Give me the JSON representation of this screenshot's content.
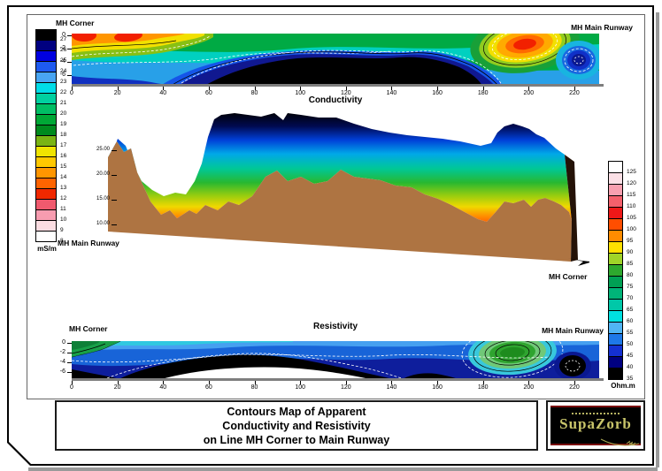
{
  "panels": {
    "conductivity": {
      "left_label": "MH Corner",
      "right_label": "MH Main Runway",
      "axis_title": "Conductivity",
      "x_ticks": [
        "0",
        "20",
        "40",
        "60",
        "80",
        "100",
        "120",
        "140",
        "160",
        "180",
        "200",
        "220"
      ],
      "y_ticks": [
        "0",
        "-2",
        "-4",
        "-6"
      ]
    },
    "terrain": {
      "left_label": "MH Main Runway",
      "right_label": "MH Corner",
      "elevation_ticks": [
        "25.00",
        "20.00",
        "15.00",
        "10.00"
      ]
    },
    "resistivity": {
      "left_label": "MH Corner",
      "right_label": "MH Main Runway",
      "axis_title": "Resistivity",
      "x_ticks": [
        "0",
        "20",
        "40",
        "60",
        "80",
        "100",
        "120",
        "140",
        "160",
        "180",
        "200",
        "220"
      ],
      "y_ticks": [
        "0",
        "-2",
        "-4",
        "-6"
      ]
    }
  },
  "left_colorbar": {
    "unit": "mS/m",
    "labels": [
      "27",
      "26",
      "25",
      "24",
      "23",
      "22",
      "21",
      "20",
      "19",
      "18",
      "17",
      "16",
      "15",
      "14",
      "13",
      "12",
      "11",
      "10",
      "9",
      "8"
    ],
    "colors": [
      "#000000",
      "#000080",
      "#0000E0",
      "#1E5AF0",
      "#49A5F2",
      "#00DCE8",
      "#00D0A0",
      "#00BE64",
      "#00A836",
      "#008A1E",
      "#7AB414",
      "#F0E400",
      "#FFC800",
      "#FF9600",
      "#FF6400",
      "#F02800",
      "#F05A6E",
      "#F79CB0",
      "#FBDDE2",
      "#FFFFFF"
    ]
  },
  "right_colorbar": {
    "unit": "Ohm.m",
    "labels": [
      "125",
      "120",
      "115",
      "110",
      "105",
      "100",
      "95",
      "90",
      "85",
      "80",
      "75",
      "70",
      "65",
      "60",
      "55",
      "50",
      "45",
      "40",
      "35"
    ],
    "colors": [
      "#FFFFFF",
      "#FBE0E6",
      "#F8A0B0",
      "#F4606C",
      "#EE1818",
      "#FF4E00",
      "#FF8C00",
      "#FFE000",
      "#A0D428",
      "#2EA82E",
      "#00A054",
      "#00B478",
      "#00C8A8",
      "#00E0E0",
      "#50B4F4",
      "#1E78E8",
      "#1430D2",
      "#000080",
      "#000000"
    ]
  },
  "title_block": {
    "line1": "Contours Map of Apparent",
    "line2": "Conductivity and Resistivity",
    "line3": "on Line MH Corner to Main Runway"
  },
  "logo": {
    "text": "SupaZorb",
    "bg": "#000000",
    "accent": "#8B0000",
    "text_color": "#C9C56A"
  },
  "chart_data": [
    {
      "type": "heatmap",
      "panel": "conductivity_section",
      "title": "Conductivity",
      "left_end": "MH Corner",
      "right_end": "MH Main Runway",
      "x_ticks": [
        0,
        20,
        40,
        60,
        80,
        100,
        120,
        140,
        160,
        180,
        200,
        220
      ],
      "x_range": [
        0,
        230
      ],
      "depth_ticks": [
        0,
        -2,
        -4,
        -6
      ],
      "depth_range": [
        0,
        -7
      ],
      "value_unit": "mS/m",
      "value_scale": {
        "min": 8,
        "max": 27,
        "step": 1
      },
      "features": [
        "very high conductivity (>26 mS/m, black) zone from x≈55 to x≈175 below about -2 m",
        "warm low-conductivity zone (12-16 mS/m) in the upper 3 m from x≈0 to x≈55 with red cores near x≈4 and x≈25",
        "strong low-conductivity anomaly (~12 mS/m core) near surface around x≈185-205",
        "blue moderate-high zone (~24-26 mS/m) around x≈215-228"
      ]
    },
    {
      "type": "area",
      "panel": "terrain_3d_section",
      "left_end": "MH Main Runway",
      "right_end": "MH Corner",
      "elevation_ticks": [
        25,
        20,
        15,
        10
      ],
      "description": "3D shaded terrain ribbon with brown front face; top surface colored by conductivity, black/blue along high ridge grading through green-yellow to orange-red in the deep valley near the left end and at the right end"
    },
    {
      "type": "heatmap",
      "panel": "resistivity_section",
      "title": "Resistivity",
      "left_end": "MH Corner",
      "right_end": "MH Main Runway",
      "x_ticks": [
        0,
        20,
        40,
        60,
        80,
        100,
        120,
        140,
        160,
        180,
        200,
        220
      ],
      "x_range": [
        0,
        230
      ],
      "depth_ticks": [
        0,
        -2,
        -4,
        -6
      ],
      "depth_range": [
        0,
        -7
      ],
      "value_unit": "Ohm.m",
      "value_scale": {
        "min": 35,
        "max": 125,
        "step": 5
      },
      "features": [
        "very low resistivity (<40 Ohm.m, black) band from x≈20 to x≈145 below about -2 m",
        "white below-scale pocket beneath the black band around x≈38-134",
        "green moderate-high patch (~70-85 Ohm.m) at the surface near x≈0-20",
        "high resistivity core (~85 Ohm.m, green) near surface around x≈180-205",
        "black low-resistivity oval around x≈213-225"
      ]
    }
  ]
}
